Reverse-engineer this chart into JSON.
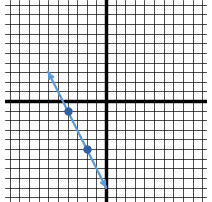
{
  "grid_range": [
    -10,
    10
  ],
  "grid_step": 1,
  "points": [
    [
      -4,
      -1
    ],
    [
      -2,
      -5
    ]
  ],
  "point_color": "#2e5fa3",
  "line_color": "#5b9bd5",
  "line_width": 1.6,
  "axis_color": "#000000",
  "grid_color": "#000000",
  "background_color": "#ffffff",
  "figsize": [
    2.12,
    2.02
  ],
  "dpi": 100,
  "axis_linewidth": 2.5,
  "grid_linewidth": 0.5,
  "extend_factor": 4.5,
  "arrow_mutation": 8
}
